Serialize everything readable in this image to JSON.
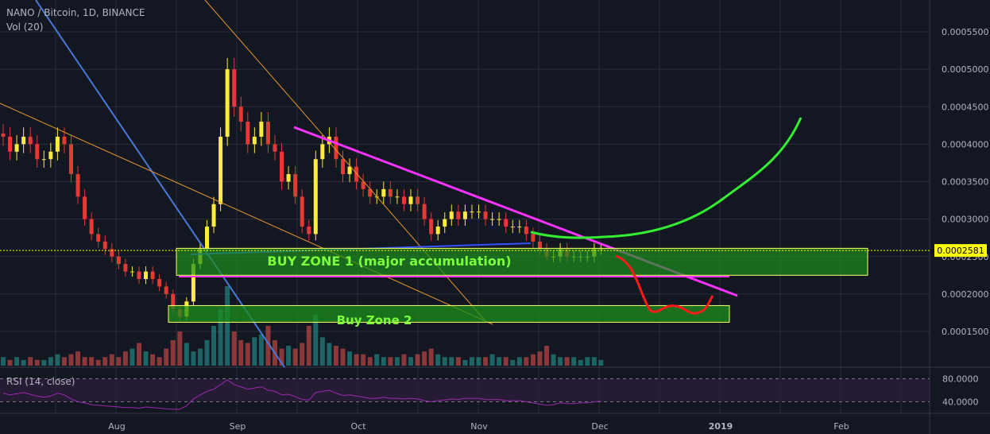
{
  "header": {
    "symbol_line": "NANO / Bitcoin, 1D, BINANCE",
    "volume_label": "Vol (20)",
    "rsi_label": "RSI (14, close)"
  },
  "price_axis": {
    "ticks": [
      "0.0005500",
      "0.0005000",
      "0.0004500",
      "0.0004000",
      "0.0003500",
      "0.0003000",
      "0.0002500",
      "0.0002000",
      "0.0001500"
    ],
    "current_price": "0.0002581"
  },
  "rsi_axis": {
    "ticks": [
      "80.0000",
      "40.0000"
    ]
  },
  "time_axis": {
    "ticks": [
      "Aug",
      "Sep",
      "Oct",
      "Nov",
      "Dec",
      "2019",
      "Feb"
    ]
  },
  "annotations": {
    "zone1_label": "BUY ZONE 1 (major accumulation)",
    "zone2_label": "Buy Zone 2"
  },
  "colors": {
    "background": "#131722",
    "grid": "#2a2e39",
    "candle_up": "#ffeb3b",
    "candle_down": "#e53935",
    "volume_up": "#26a69a",
    "volume_down": "#ef5350",
    "zone_fill": "#1c8f1c",
    "zone_border": "#ffff66",
    "zone_text": "#7cff3c",
    "trend_magenta": "#ff33ff",
    "trend_blue": "#4a78d8",
    "trend_orange": "#e6962f",
    "projection_green": "#33ee33",
    "projection_red": "#ff1a1a",
    "rsi_line": "#9c27b0",
    "rsi_band": "#2a1d3a",
    "price_tag_bg": "#ffff00"
  },
  "chart_data": {
    "type": "candlestick",
    "title": "NANO / Bitcoin, 1D, BINANCE",
    "x_axis_labels": [
      "Aug",
      "Sep",
      "Oct",
      "Nov",
      "Dec",
      "2019",
      "Feb"
    ],
    "ylim": [
      0.00012,
      0.00058
    ],
    "grid": true,
    "current_price": 0.0002581,
    "zones": [
      {
        "name": "BUY ZONE 1 (major accumulation)",
        "low": 0.000225,
        "high": 0.000261
      },
      {
        "name": "Buy Zone 2",
        "low": 0.000163,
        "high": 0.000175
      }
    ],
    "rsi": {
      "period": 14,
      "source": "close",
      "levels": [
        80,
        40
      ],
      "ylim": [
        20,
        100
      ]
    },
    "close_series_approx": [
      0.00041,
      0.00039,
      0.0004,
      0.00041,
      0.0004,
      0.00038,
      0.00038,
      0.00039,
      0.00041,
      0.0004,
      0.00036,
      0.00033,
      0.0003,
      0.00028,
      0.00027,
      0.00026,
      0.00025,
      0.00024,
      0.00023,
      0.00023,
      0.00022,
      0.00023,
      0.00022,
      0.00021,
      0.0002,
      0.00018,
      0.00017,
      0.00019,
      0.00024,
      0.00026,
      0.00029,
      0.00032,
      0.00041,
      0.0005,
      0.00045,
      0.00043,
      0.0004,
      0.00041,
      0.00043,
      0.0004,
      0.00039,
      0.00035,
      0.00036,
      0.00033,
      0.00029,
      0.00028,
      0.00038,
      0.0004,
      0.00041,
      0.00038,
      0.00036,
      0.00037,
      0.00035,
      0.00034,
      0.00033,
      0.00033,
      0.00034,
      0.00033,
      0.00033,
      0.00032,
      0.00033,
      0.00032,
      0.0003,
      0.00028,
      0.00029,
      0.0003,
      0.00031,
      0.0003,
      0.00031,
      0.00031,
      0.00031,
      0.0003,
      0.0003,
      0.0003,
      0.00029,
      0.00029,
      0.00029,
      0.00028,
      0.00027,
      0.00026,
      0.00025,
      0.00025,
      0.00026,
      0.00025,
      0.00025,
      0.00025,
      0.00025,
      0.00026,
      0.00026
    ],
    "volume_series_approx": [
      3,
      2,
      3,
      2,
      3,
      2,
      2,
      3,
      4,
      3,
      4,
      5,
      3,
      3,
      2,
      3,
      4,
      3,
      5,
      6,
      8,
      5,
      4,
      3,
      6,
      9,
      12,
      8,
      5,
      6,
      9,
      14,
      20,
      28,
      12,
      9,
      8,
      10,
      11,
      14,
      9,
      6,
      7,
      6,
      8,
      14,
      18,
      10,
      8,
      7,
      6,
      5,
      4,
      4,
      3,
      4,
      3,
      3,
      3,
      4,
      3,
      4,
      5,
      6,
      4,
      3,
      3,
      3,
      2,
      3,
      3,
      3,
      4,
      3,
      3,
      2,
      3,
      3,
      4,
      5,
      7,
      4,
      3,
      3,
      3,
      2,
      3,
      3,
      2
    ],
    "rsi_series_approx": [
      55,
      52,
      54,
      56,
      53,
      50,
      48,
      50,
      55,
      52,
      45,
      40,
      38,
      35,
      34,
      33,
      32,
      31,
      30,
      30,
      29,
      31,
      30,
      29,
      28,
      27,
      27,
      33,
      45,
      52,
      58,
      62,
      70,
      78,
      70,
      66,
      62,
      64,
      66,
      60,
      58,
      52,
      53,
      49,
      44,
      43,
      56,
      58,
      60,
      55,
      51,
      52,
      50,
      48,
      46,
      46,
      48,
      46,
      46,
      45,
      46,
      45,
      42,
      40,
      42,
      43,
      45,
      44,
      46,
      46,
      46,
      44,
      44,
      44,
      42,
      42,
      42,
      40,
      38,
      36,
      34,
      35,
      38,
      37,
      37,
      38,
      38,
      40,
      41
    ]
  }
}
